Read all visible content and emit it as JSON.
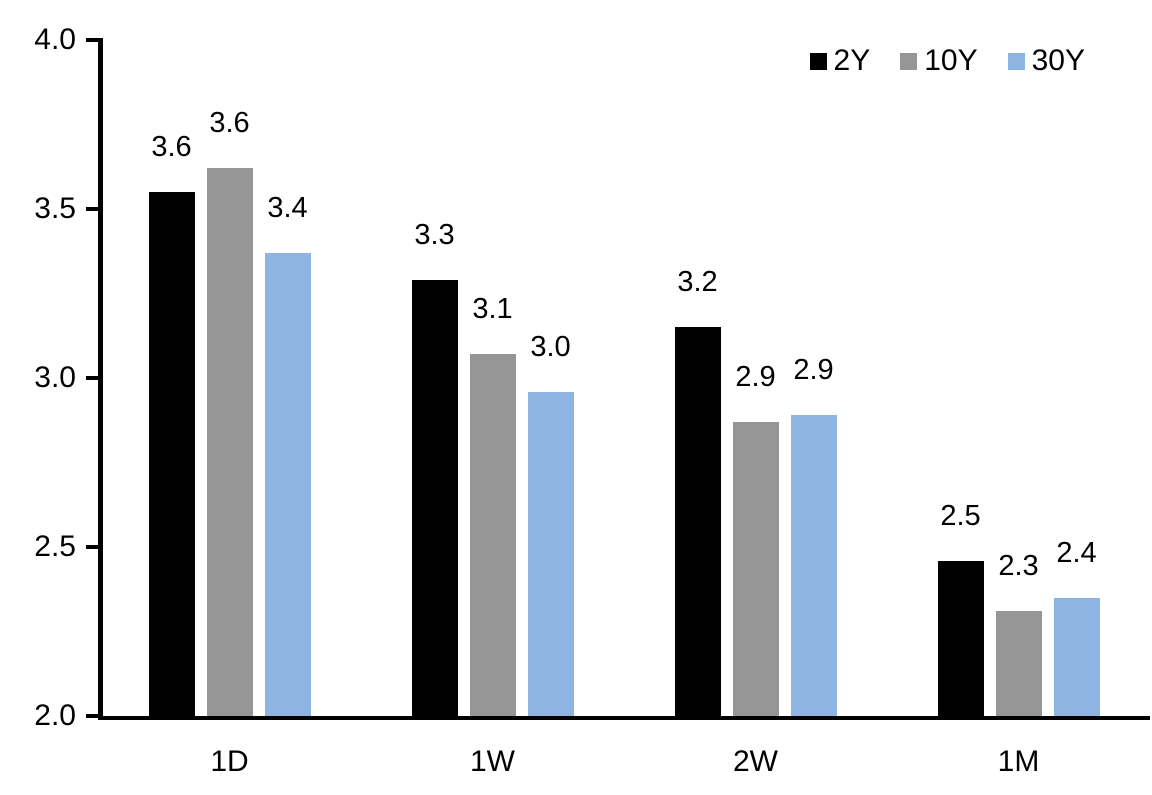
{
  "chart_data": {
    "type": "bar",
    "title": "",
    "xlabel": "",
    "ylabel": "",
    "categories": [
      "1D",
      "1W",
      "2W",
      "1M"
    ],
    "series": [
      {
        "name": "2Y",
        "color": "#000000",
        "values": [
          3.55,
          3.29,
          3.15,
          2.46
        ],
        "labels": [
          "3.6",
          "3.3",
          "3.2",
          "2.5"
        ]
      },
      {
        "name": "10Y",
        "color": "#969696",
        "values": [
          3.62,
          3.07,
          2.87,
          2.31
        ],
        "labels": [
          "3.6",
          "3.1",
          "2.9",
          "2.3"
        ]
      },
      {
        "name": "30Y",
        "color": "#8DB4E2",
        "values": [
          3.37,
          2.96,
          2.89,
          2.35
        ],
        "labels": [
          "3.4",
          "3.0",
          "2.9",
          "2.4"
        ]
      }
    ],
    "ylim": [
      2.0,
      4.0
    ],
    "yticks": [
      "2.0",
      "2.5",
      "3.0",
      "3.5",
      "4.0"
    ],
    "grid": false,
    "legend_position": "top-right",
    "axis_color": "#000000",
    "label_color": "#000000",
    "background": "#FFFFFF"
  }
}
